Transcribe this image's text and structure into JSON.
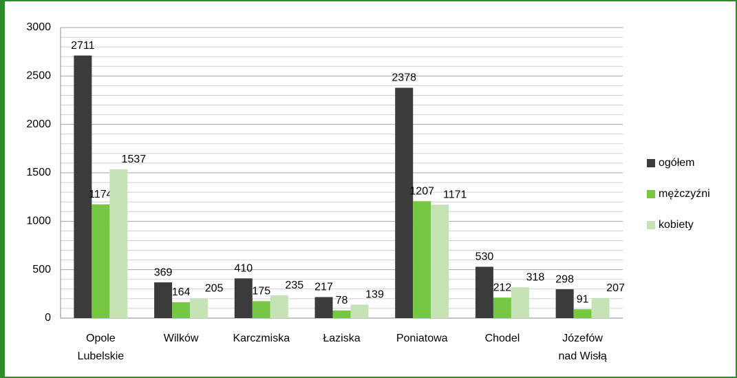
{
  "chart_data": {
    "type": "bar",
    "categories": [
      "Opole Lubelskie",
      "Wilków",
      "Karczmiska",
      "Łaziska",
      "Poniatowa",
      "Chodel",
      "Józefów nad Wisłą"
    ],
    "series": [
      {
        "name": "ogółem",
        "color": "#3b3b3b",
        "values": [
          2711,
          369,
          410,
          217,
          2378,
          530,
          298
        ]
      },
      {
        "name": "mężczyźni",
        "color": "#76c843",
        "values": [
          1174,
          164,
          175,
          78,
          1207,
          212,
          91
        ]
      },
      {
        "name": "kobiety",
        "color": "#c5e3b5",
        "values": [
          1537,
          205,
          235,
          139,
          1171,
          318,
          207
        ]
      }
    ],
    "ylim": [
      0,
      3000
    ],
    "yticks": [
      0,
      500,
      1000,
      1500,
      2000,
      2500,
      3000
    ],
    "minor_yticks": [
      100,
      200,
      300,
      400,
      600,
      700,
      800,
      900,
      1100,
      1200,
      1300,
      1400,
      1600,
      1700,
      1800,
      1900,
      2100,
      2200,
      2300,
      2400,
      2600,
      2700,
      2800,
      2900
    ],
    "grid": true,
    "legend": "right"
  }
}
